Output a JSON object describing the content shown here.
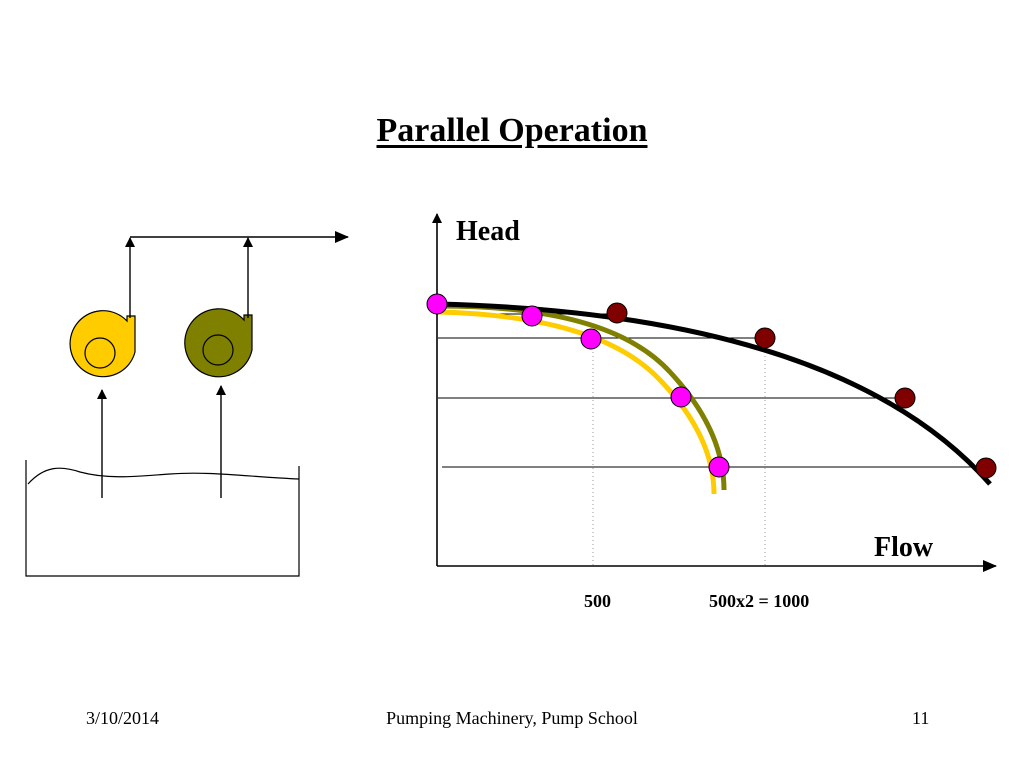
{
  "slide": {
    "title": "Parallel Operation",
    "footer": {
      "date": "3/10/2014",
      "center": "Pumping Machinery, Pump School",
      "page": "11"
    }
  },
  "graph": {
    "y_axis_label": "Head",
    "x_axis_label": "Flow",
    "tick_labels": [
      "500",
      "500x2 = 1000"
    ]
  },
  "colors": {
    "pump_1": "#FFCC00",
    "pump_2": "#808000",
    "combined_curve": "#000000",
    "single_pump_points": "#FF00FF",
    "combined_points": "#800000"
  }
}
